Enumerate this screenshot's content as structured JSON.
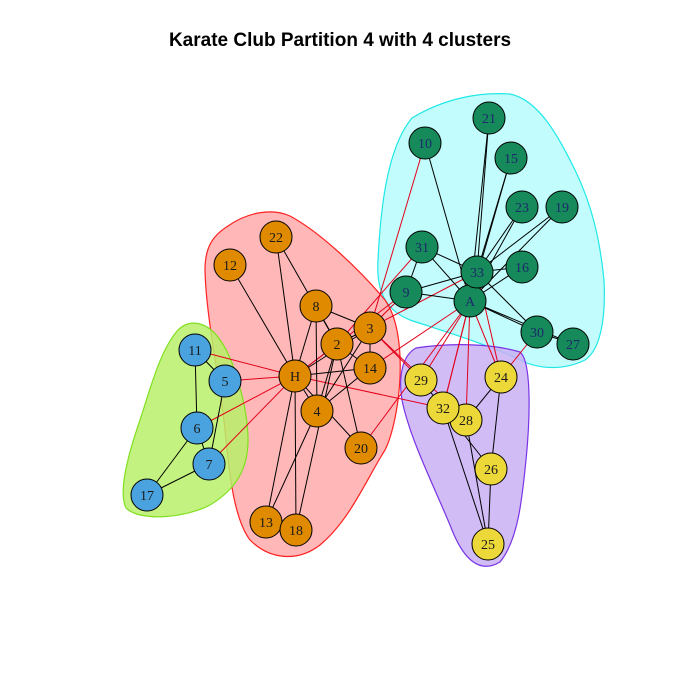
{
  "title": "Karate Club Partition 4 with 4 clusters",
  "colors": {
    "cluster_orange": "#E08A00",
    "cluster_blue": "#4AA3DF",
    "cluster_green": "#168A5A",
    "cluster_yellow": "#EDD83A",
    "hull_red_fill": "#FFB3B3",
    "hull_red_stroke": "#FF2020",
    "hull_lime_fill": "#B8F06A",
    "hull_lime_stroke": "#80E020",
    "hull_cyan_fill": "#B8FCFC",
    "hull_cyan_stroke": "#20E8E8",
    "hull_purple_fill": "#C9B0F5",
    "hull_purple_stroke": "#7A33E6",
    "edge_internal": "#000000",
    "edge_between": "#E3001A",
    "label_text": "#1B2A6B"
  },
  "clusters": [
    {
      "id": "red",
      "nodes": [
        "H",
        "2",
        "3",
        "4",
        "8",
        "12",
        "13",
        "14",
        "18",
        "20",
        "22"
      ]
    },
    {
      "id": "lime",
      "nodes": [
        "5",
        "6",
        "7",
        "11",
        "17"
      ]
    },
    {
      "id": "cyan",
      "nodes": [
        "A",
        "9",
        "10",
        "15",
        "16",
        "19",
        "21",
        "23",
        "27",
        "30",
        "31",
        "33"
      ]
    },
    {
      "id": "purple",
      "nodes": [
        "24",
        "25",
        "26",
        "28",
        "29",
        "32"
      ]
    }
  ],
  "nodes": [
    {
      "id": "H",
      "label": "H",
      "cluster": "orange"
    },
    {
      "id": "2",
      "label": "2",
      "cluster": "orange"
    },
    {
      "id": "3",
      "label": "3",
      "cluster": "orange"
    },
    {
      "id": "4",
      "label": "4",
      "cluster": "orange"
    },
    {
      "id": "8",
      "label": "8",
      "cluster": "orange"
    },
    {
      "id": "12",
      "label": "12",
      "cluster": "orange"
    },
    {
      "id": "13",
      "label": "13",
      "cluster": "orange"
    },
    {
      "id": "14",
      "label": "14",
      "cluster": "orange"
    },
    {
      "id": "18",
      "label": "18",
      "cluster": "orange"
    },
    {
      "id": "20",
      "label": "20",
      "cluster": "orange"
    },
    {
      "id": "22",
      "label": "22",
      "cluster": "orange"
    },
    {
      "id": "5",
      "label": "5",
      "cluster": "blue"
    },
    {
      "id": "6",
      "label": "6",
      "cluster": "blue"
    },
    {
      "id": "7",
      "label": "7",
      "cluster": "blue"
    },
    {
      "id": "11",
      "label": "11",
      "cluster": "blue"
    },
    {
      "id": "17",
      "label": "17",
      "cluster": "blue"
    },
    {
      "id": "A",
      "label": "A",
      "cluster": "green"
    },
    {
      "id": "9",
      "label": "9",
      "cluster": "green"
    },
    {
      "id": "10",
      "label": "10",
      "cluster": "green"
    },
    {
      "id": "15",
      "label": "15",
      "cluster": "green"
    },
    {
      "id": "16",
      "label": "16",
      "cluster": "green"
    },
    {
      "id": "19",
      "label": "19",
      "cluster": "green"
    },
    {
      "id": "21",
      "label": "21",
      "cluster": "green"
    },
    {
      "id": "23",
      "label": "23",
      "cluster": "green"
    },
    {
      "id": "27",
      "label": "27",
      "cluster": "green"
    },
    {
      "id": "30",
      "label": "30",
      "cluster": "green"
    },
    {
      "id": "31",
      "label": "31",
      "cluster": "green"
    },
    {
      "id": "33",
      "label": "33",
      "cluster": "green"
    },
    {
      "id": "24",
      "label": "24",
      "cluster": "yellow"
    },
    {
      "id": "25",
      "label": "25",
      "cluster": "yellow"
    },
    {
      "id": "26",
      "label": "26",
      "cluster": "yellow"
    },
    {
      "id": "28",
      "label": "28",
      "cluster": "yellow"
    },
    {
      "id": "29",
      "label": "29",
      "cluster": "yellow"
    },
    {
      "id": "32",
      "label": "32",
      "cluster": "yellow"
    }
  ],
  "edges": [
    [
      "H",
      "2"
    ],
    [
      "H",
      "3"
    ],
    [
      "H",
      "4"
    ],
    [
      "H",
      "5"
    ],
    [
      "H",
      "6"
    ],
    [
      "H",
      "7"
    ],
    [
      "H",
      "8"
    ],
    [
      "H",
      "9"
    ],
    [
      "H",
      "11"
    ],
    [
      "H",
      "12"
    ],
    [
      "H",
      "13"
    ],
    [
      "H",
      "14"
    ],
    [
      "H",
      "18"
    ],
    [
      "H",
      "20"
    ],
    [
      "H",
      "22"
    ],
    [
      "H",
      "32"
    ],
    [
      "2",
      "3"
    ],
    [
      "2",
      "4"
    ],
    [
      "2",
      "8"
    ],
    [
      "2",
      "14"
    ],
    [
      "2",
      "18"
    ],
    [
      "2",
      "20"
    ],
    [
      "2",
      "22"
    ],
    [
      "2",
      "31"
    ],
    [
      "3",
      "4"
    ],
    [
      "3",
      "8"
    ],
    [
      "3",
      "9"
    ],
    [
      "3",
      "10"
    ],
    [
      "3",
      "14"
    ],
    [
      "3",
      "28"
    ],
    [
      "3",
      "29"
    ],
    [
      "3",
      "33"
    ],
    [
      "4",
      "8"
    ],
    [
      "4",
      "13"
    ],
    [
      "4",
      "14"
    ],
    [
      "5",
      "7"
    ],
    [
      "5",
      "11"
    ],
    [
      "6",
      "7"
    ],
    [
      "6",
      "11"
    ],
    [
      "6",
      "17"
    ],
    [
      "7",
      "17"
    ],
    [
      "9",
      "31"
    ],
    [
      "9",
      "33"
    ],
    [
      "9",
      "A"
    ],
    [
      "10",
      "A"
    ],
    [
      "14",
      "A"
    ],
    [
      "15",
      "33"
    ],
    [
      "15",
      "A"
    ],
    [
      "16",
      "33"
    ],
    [
      "16",
      "A"
    ],
    [
      "19",
      "33"
    ],
    [
      "19",
      "A"
    ],
    [
      "20",
      "A"
    ],
    [
      "21",
      "33"
    ],
    [
      "21",
      "A"
    ],
    [
      "23",
      "33"
    ],
    [
      "23",
      "A"
    ],
    [
      "24",
      "26"
    ],
    [
      "24",
      "28"
    ],
    [
      "24",
      "30"
    ],
    [
      "24",
      "33"
    ],
    [
      "24",
      "A"
    ],
    [
      "25",
      "26"
    ],
    [
      "25",
      "28"
    ],
    [
      "25",
      "32"
    ],
    [
      "26",
      "32"
    ],
    [
      "27",
      "30"
    ],
    [
      "27",
      "A"
    ],
    [
      "28",
      "A"
    ],
    [
      "29",
      "32"
    ],
    [
      "29",
      "A"
    ],
    [
      "30",
      "33"
    ],
    [
      "30",
      "A"
    ],
    [
      "31",
      "33"
    ],
    [
      "31",
      "A"
    ],
    [
      "32",
      "33"
    ],
    [
      "32",
      "A"
    ],
    [
      "33",
      "A"
    ]
  ]
}
